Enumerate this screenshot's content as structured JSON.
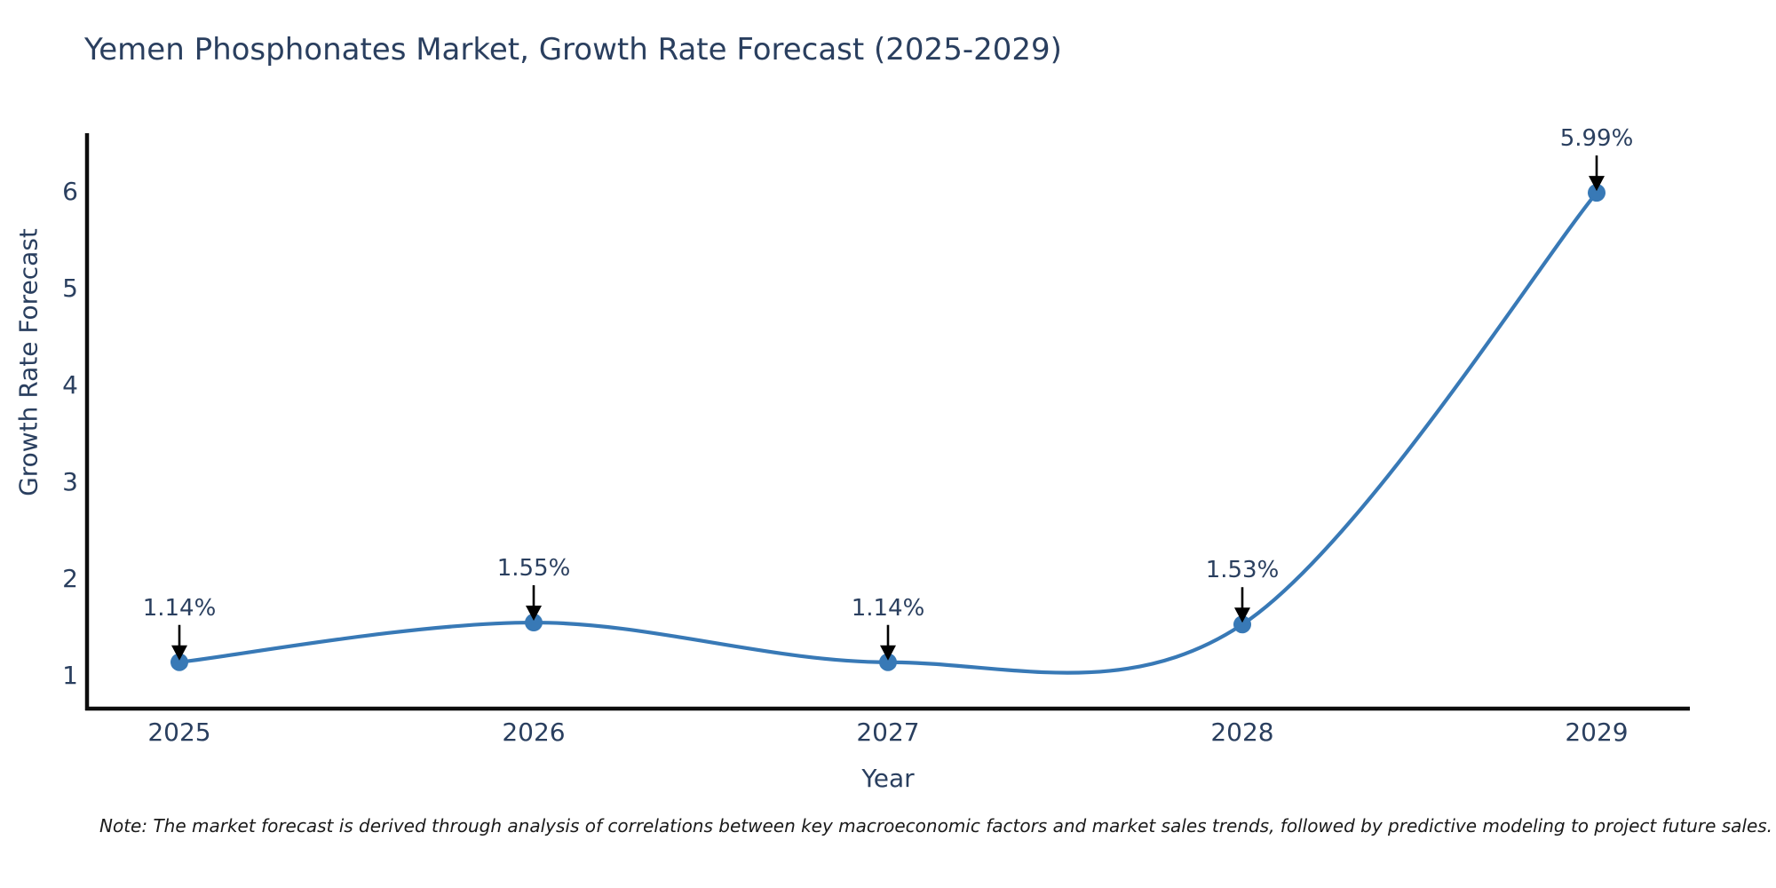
{
  "title": "Yemen Phosphonates Market, Growth Rate Forecast (2025-2029)",
  "note": "Note: The market forecast is derived through analysis of correlations between key macroeconomic factors and market sales trends, followed by predictive modeling to project future sales.",
  "colors": {
    "line": "#3879b6",
    "marker": "#3879b6",
    "text": "#2a3f5f",
    "axis_line": "#0d0d0d",
    "arrow": "#000000",
    "background": "#ffffff"
  },
  "chart_data": {
    "type": "line",
    "title": "Yemen Phosphonates Market, Growth Rate Forecast (2025-2029)",
    "xlabel": "Year",
    "ylabel": "Growth Rate Forecast",
    "x": [
      2025,
      2026,
      2027,
      2028,
      2029
    ],
    "y": [
      1.14,
      1.55,
      1.14,
      1.53,
      5.99
    ],
    "series": [
      {
        "name": "Growth Rate Forecast",
        "values": [
          1.14,
          1.55,
          1.14,
          1.53,
          5.99
        ]
      }
    ],
    "point_labels": [
      "1.14%",
      "1.55%",
      "1.14%",
      "1.53%",
      "5.99%"
    ],
    "xtick_labels": [
      "2025",
      "2026",
      "2027",
      "2028",
      "2029"
    ],
    "ytick_labels": [
      "1",
      "2",
      "3",
      "4",
      "5",
      "6"
    ],
    "ytick_values": [
      1,
      2,
      3,
      4,
      5,
      6
    ],
    "ylim": [
      0.66,
      6.6
    ],
    "line_shape": "spline",
    "grid": false,
    "legend_position": "none",
    "annotations_have_arrows": true
  }
}
